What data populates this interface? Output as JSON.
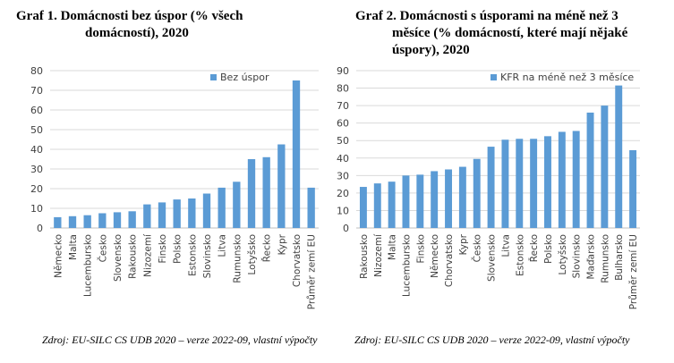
{
  "charts": [
    {
      "title_line1": "Graf 1. Domácnosti bez úspor (% všech",
      "title_line2": "domácností), 2020",
      "source": "Zdroj: EU-SILC CS UDB 2020 – verze 2022-09, vlastní výpočty"
    },
    {
      "title_line1": "Graf 2. Domácnosti s úsporami na méně než 3",
      "title_line2": "měsíce (% domácností, které mají nějaké",
      "title_line3": "úspory), 2020",
      "source": "Zdroj: EU-SILC CS UDB 2020 – verze 2022-09, vlastní výpočty"
    }
  ],
  "chart_data": [
    {
      "type": "bar",
      "categories": [
        "Německo",
        "Malta",
        "Lucembursko",
        "Česko",
        "Slovensko",
        "Rakousko",
        "Nizozemí",
        "Finsko",
        "Polsko",
        "Estonsko",
        "Slovinsko",
        "Litva",
        "Rumunsko",
        "Lotyšsko",
        "Řecko",
        "Kypr",
        "Chorvatsko",
        "Průměr zemí EU"
      ],
      "series": [
        {
          "name": "Bez úspor",
          "values": [
            5.5,
            6,
            6.5,
            7.5,
            8,
            8.5,
            12,
            13,
            14.5,
            15,
            17.5,
            20.5,
            23.5,
            35,
            36,
            42.5,
            75,
            20.5
          ]
        }
      ],
      "ylim": [
        0,
        80
      ],
      "yticks": [
        0,
        10,
        20,
        30,
        40,
        50,
        60,
        70,
        80
      ],
      "grid": true,
      "legend_position": "top-right",
      "color": "#5B9BD5"
    },
    {
      "type": "bar",
      "categories": [
        "Rakousko",
        "Nizozemí",
        "Malta",
        "Lucembursko",
        "Finsko",
        "Německo",
        "Chorvatsko",
        "Kypr",
        "Česko",
        "Slovensko",
        "Litva",
        "Estonsko",
        "Řecko",
        "Polsko",
        "Lotyšsko",
        "Slovinsko",
        "Maďarsko",
        "Rumunsko",
        "Bulharsko",
        "Průměr zemí EU"
      ],
      "series": [
        {
          "name": "KFR na méně než 3 měsíce",
          "values": [
            23.5,
            25.5,
            26.5,
            30,
            30.5,
            32.5,
            33.5,
            35,
            39.5,
            46.5,
            50.5,
            51,
            51,
            52.5,
            55,
            55.5,
            66,
            70,
            81.5,
            44.5
          ]
        }
      ],
      "ylim": [
        0,
        90
      ],
      "yticks": [
        0,
        10,
        20,
        30,
        40,
        50,
        60,
        70,
        80,
        90
      ],
      "grid": true,
      "legend_position": "top-left",
      "color": "#5B9BD5"
    }
  ]
}
